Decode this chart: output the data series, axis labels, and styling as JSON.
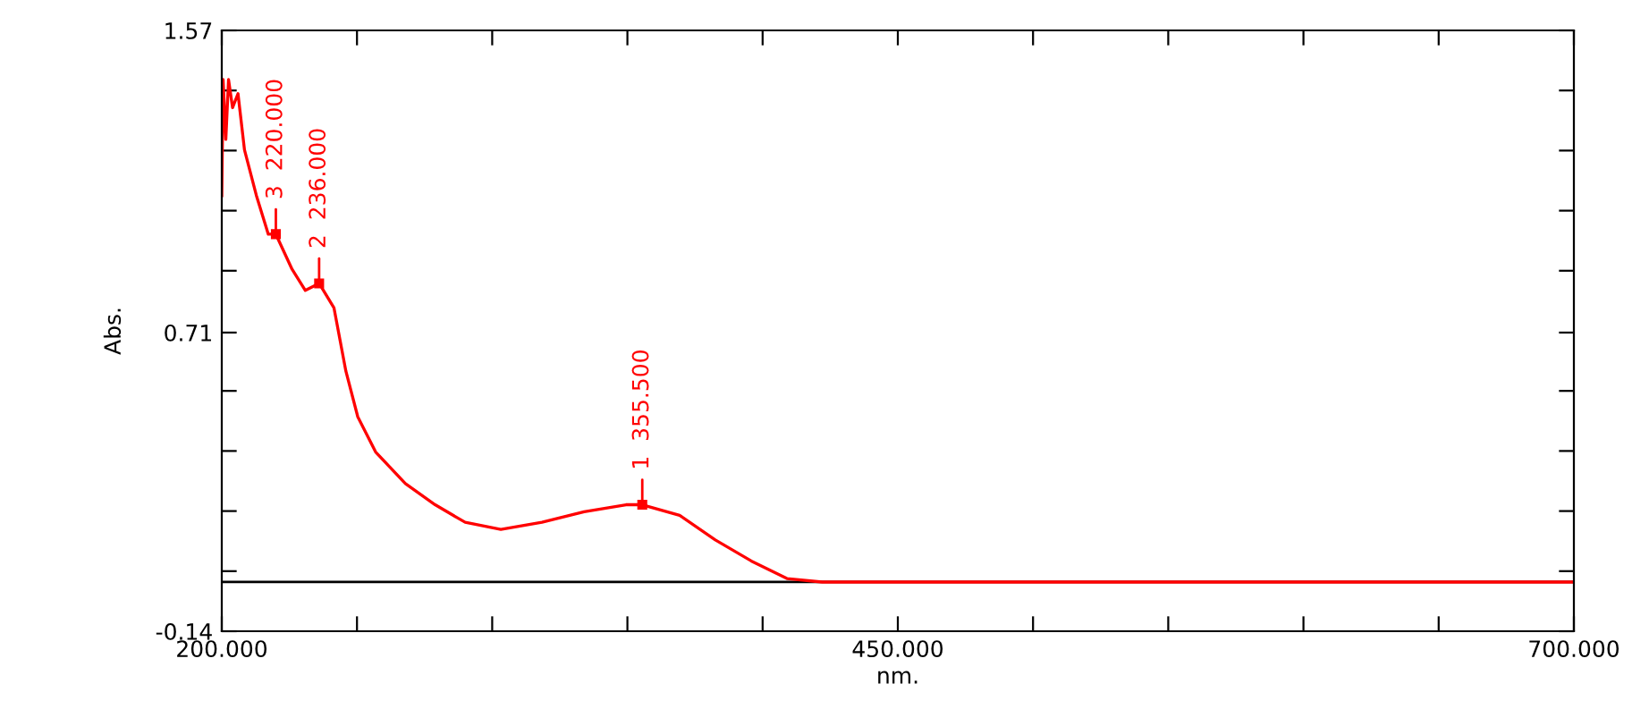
{
  "chart_data": {
    "type": "line",
    "xlabel": "nm.",
    "ylabel": "Abs.",
    "xlim": [
      200,
      700
    ],
    "ylim": [
      -0.14,
      1.57
    ],
    "xticks": [
      {
        "value": 200,
        "label": "200.000"
      },
      {
        "value": 250,
        "label": null
      },
      {
        "value": 300,
        "label": null
      },
      {
        "value": 350,
        "label": null
      },
      {
        "value": 400,
        "label": null
      },
      {
        "value": 450,
        "label": "450.000"
      },
      {
        "value": 500,
        "label": null
      },
      {
        "value": 550,
        "label": null
      },
      {
        "value": 600,
        "label": null
      },
      {
        "value": 650,
        "label": null
      },
      {
        "value": 700,
        "label": "700.000"
      }
    ],
    "yticks": [
      -0.14,
      {
        "value": 0.031,
        "label": null
      },
      {
        "value": 0.202,
        "label": null
      },
      {
        "value": 0.373,
        "label": null
      },
      {
        "value": 0.544,
        "label": null
      },
      0.71,
      {
        "value": 0.886,
        "label": null
      },
      {
        "value": 1.057,
        "label": null
      },
      {
        "value": 1.228,
        "label": null
      },
      {
        "value": 1.399,
        "label": null
      },
      1.57
    ],
    "grid": false,
    "legend": false,
    "marker": "none",
    "line_style": "solid",
    "series": [
      {
        "color": "#ff0000",
        "x": [
          200,
          200.5,
          201.5,
          202.5,
          204,
          206,
          208.4,
          212.8,
          217.2,
          220,
          226,
          230.9,
          236,
          241.5,
          245.9,
          250.3,
          256.9,
          267.9,
          278.9,
          290,
          303.2,
          318.4,
          334,
          349.5,
          355.5,
          369.3,
          382.5,
          395.8,
          409,
          422,
          450,
          500,
          550,
          600,
          650,
          700
        ],
        "values": [
          1.1,
          1.43,
          1.26,
          1.43,
          1.35,
          1.39,
          1.23,
          1.1,
          0.99,
          0.99,
          0.89,
          0.83,
          0.85,
          0.78,
          0.6,
          0.47,
          0.37,
          0.28,
          0.22,
          0.17,
          0.15,
          0.17,
          0.2,
          0.22,
          0.22,
          0.19,
          0.12,
          0.06,
          0.01,
          0.0,
          0.0,
          0.0,
          0.0,
          0.0,
          0.0,
          0.0
        ]
      }
    ],
    "ref_lines": [
      {
        "axis": "y",
        "value": 0,
        "color": "#000000",
        "line_style": "solid"
      }
    ],
    "annotations": [
      {
        "text": "3  220.000",
        "x": 220,
        "y": 0.99
      },
      {
        "text": "2  236.000",
        "x": 236,
        "y": 0.85
      },
      {
        "text": "1  355.500",
        "x": 355.5,
        "y": 0.22
      }
    ]
  }
}
